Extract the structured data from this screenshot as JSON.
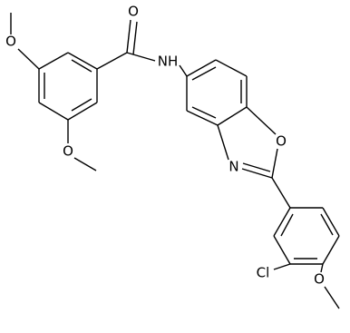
{
  "atoms": [
    {
      "label": "O"
    },
    {
      "label": "NH"
    },
    {
      "label": "O"
    },
    {
      "label": "O"
    },
    {
      "label": "O"
    },
    {
      "label": "N"
    },
    {
      "label": "Cl"
    },
    {
      "label": "O"
    }
  ]
}
